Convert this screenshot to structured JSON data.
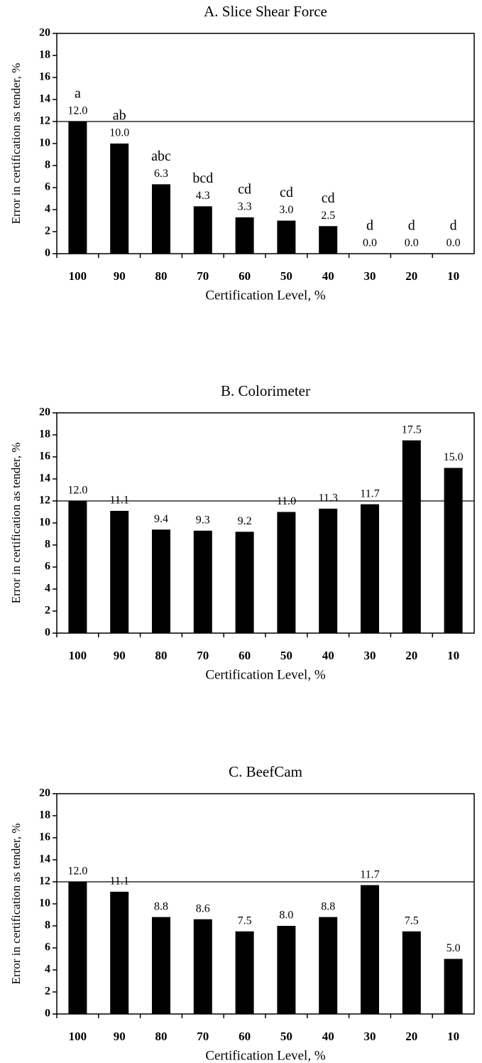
{
  "chart_data": [
    {
      "type": "bar",
      "title": "A. Slice Shear Force",
      "x_label": "Certification Level, %",
      "y_label": "Error in certification as tender, %",
      "categories": [
        "100",
        "90",
        "80",
        "70",
        "60",
        "50",
        "40",
        "30",
        "20",
        "10"
      ],
      "values": [
        12,
        10,
        6.3,
        4.3,
        3.3,
        3,
        2.5,
        0,
        0,
        0
      ],
      "value_labels": [
        "12.0",
        "10.0",
        "6.3",
        "4.3",
        "3.3",
        "3.0",
        "2.5",
        "0.0",
        "0.0",
        "0.0"
      ],
      "letters": [
        "a",
        "ab",
        "abc",
        "bcd",
        "cd",
        "cd",
        "cd",
        "d",
        "d",
        "d"
      ],
      "color": "#000000",
      "hline": 12,
      "ylim": [
        0,
        20
      ],
      "yticks": [
        0,
        2,
        4,
        6,
        8,
        10,
        12,
        14,
        16,
        18,
        20
      ]
    },
    {
      "type": "bar",
      "title": "B. Colorimeter",
      "x_label": "Certification Level, %",
      "y_label": "Error in certification as tender, %",
      "categories": [
        "100",
        "90",
        "80",
        "70",
        "60",
        "50",
        "40",
        "30",
        "20",
        "10"
      ],
      "values": [
        12,
        11.1,
        9.4,
        9.3,
        9.2,
        11,
        11.3,
        11.7,
        17.5,
        15
      ],
      "value_labels": [
        "12.0",
        "11.1",
        "9.4",
        "9.3",
        "9.2",
        "11.0",
        "11.3",
        "11.7",
        "17.5",
        "15.0"
      ],
      "color": "#000000",
      "hline": 12,
      "ylim": [
        0,
        20
      ],
      "yticks": [
        0,
        2,
        4,
        6,
        8,
        10,
        12,
        14,
        16,
        18,
        20
      ]
    },
    {
      "type": "bar",
      "title": "C. BeefCam",
      "x_label": "Certification Level, %",
      "y_label": "Error in certification as tender, %",
      "categories": [
        "100",
        "90",
        "80",
        "70",
        "60",
        "50",
        "40",
        "30",
        "20",
        "10"
      ],
      "values": [
        12,
        11.1,
        8.8,
        8.6,
        7.5,
        8,
        8.8,
        11.7,
        7.5,
        5
      ],
      "value_labels": [
        "12.0",
        "11.1",
        "8.8",
        "8.6",
        "7.5",
        "8.0",
        "8.8",
        "11.7",
        "7.5",
        "5.0"
      ],
      "color": "#000000",
      "hline": 12,
      "ylim": [
        0,
        20
      ],
      "yticks": [
        0,
        2,
        4,
        6,
        8,
        10,
        12,
        14,
        16,
        18,
        20
      ]
    }
  ]
}
